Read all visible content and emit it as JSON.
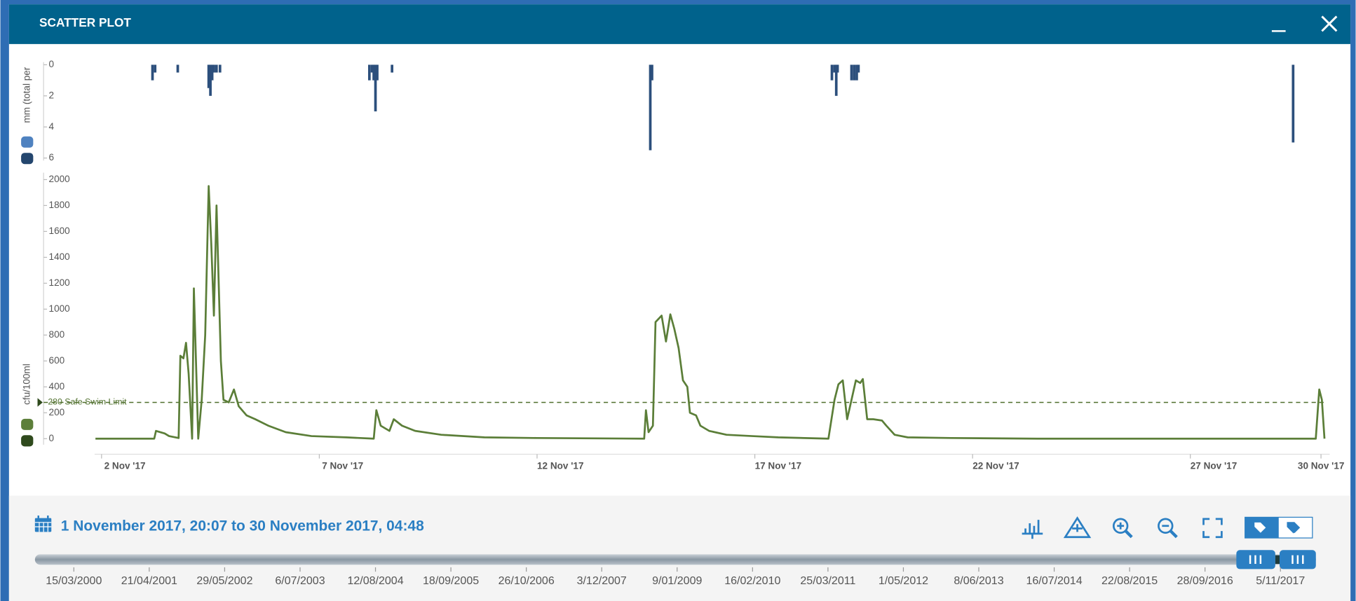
{
  "window": {
    "title": "SCATTER PLOT"
  },
  "chart_data": [
    {
      "type": "bar",
      "ylabel": "mm (total per",
      "x": [
        3.17,
        3.23,
        3.75,
        4.46,
        4.5,
        4.54,
        4.58,
        4.64,
        4.72,
        8.15,
        8.21,
        8.25,
        8.29,
        8.33,
        8.67,
        14.6,
        14.64,
        18.77,
        18.83,
        18.87,
        18.9,
        19.22,
        19.28,
        19.34,
        19.38,
        29.36
      ],
      "values": [
        1.0,
        0.5,
        0.5,
        1.5,
        2.0,
        1.0,
        0.5,
        0.5,
        0.5,
        1.0,
        0.5,
        1.0,
        3.0,
        1.0,
        0.5,
        5.5,
        1.0,
        1.0,
        0.5,
        2.0,
        0.5,
        1.0,
        1.0,
        1.0,
        0.5,
        5.0
      ],
      "color": "#2c4f7c",
      "legend_colors": [
        "#4f82c0",
        "#24466e"
      ],
      "xlim": [
        1.84,
        30.2
      ],
      "ylim": [
        0,
        6
      ],
      "yticks": [
        0,
        2,
        4,
        6
      ],
      "y_inverted": true
    },
    {
      "type": "line",
      "ylabel": "cfu/100ml",
      "x": [
        1.86,
        3.21,
        3.25,
        3.45,
        3.55,
        3.77,
        3.81,
        3.88,
        3.94,
        4.0,
        4.08,
        4.12,
        4.22,
        4.3,
        4.38,
        4.46,
        4.52,
        4.58,
        4.64,
        4.74,
        4.8,
        4.92,
        5.04,
        5.15,
        5.33,
        5.53,
        5.83,
        6.23,
        6.82,
        7.62,
        8.25,
        8.31,
        8.41,
        8.61,
        8.71,
        8.9,
        9.2,
        9.8,
        10.79,
        11.98,
        14.46,
        14.5,
        14.56,
        14.66,
        14.72,
        14.86,
        14.96,
        15.06,
        15.15,
        15.25,
        15.35,
        15.45,
        15.51,
        15.65,
        15.75,
        15.95,
        16.35,
        16.94,
        17.54,
        18.69,
        18.83,
        18.92,
        19.02,
        19.12,
        19.22,
        19.32,
        19.42,
        19.48,
        19.58,
        19.72,
        19.92,
        20.02,
        20.21,
        20.51,
        21.5,
        23.49,
        29.88,
        29.96,
        30.02,
        30.08
      ],
      "values": [
        0,
        0,
        60,
        40,
        20,
        5,
        640,
        620,
        740,
        500,
        0,
        1160,
        0,
        300,
        800,
        1950,
        1500,
        950,
        1800,
        600,
        300,
        280,
        380,
        250,
        180,
        150,
        100,
        50,
        20,
        10,
        0,
        220,
        100,
        60,
        150,
        100,
        60,
        30,
        10,
        5,
        0,
        220,
        50,
        100,
        900,
        950,
        750,
        960,
        850,
        700,
        450,
        400,
        200,
        180,
        100,
        60,
        30,
        20,
        10,
        0,
        300,
        420,
        450,
        150,
        300,
        450,
        430,
        460,
        150,
        150,
        140,
        100,
        30,
        10,
        5,
        0,
        0,
        380,
        300,
        0
      ],
      "color": "#5b7e38",
      "legend_colors": [
        "#5d7f3a",
        "#2f4a1d"
      ],
      "threshold": {
        "value": 280,
        "label": "280 Safe Swim Limit"
      },
      "xlim": [
        1.84,
        30.2
      ],
      "ylim": [
        0,
        2000
      ],
      "yticks": [
        0,
        200,
        400,
        600,
        800,
        1000,
        1200,
        1400,
        1600,
        1800,
        2000
      ],
      "xticks": [
        {
          "value": 2,
          "label": "2 Nov '17"
        },
        {
          "value": 7,
          "label": "7 Nov '17"
        },
        {
          "value": 12,
          "label": "12 Nov '17"
        },
        {
          "value": 17,
          "label": "17 Nov '17"
        },
        {
          "value": 22,
          "label": "22 Nov '17"
        },
        {
          "value": 27,
          "label": "27 Nov '17"
        },
        {
          "value": 30,
          "label": "30 Nov '17"
        }
      ]
    }
  ],
  "range_label": "1 November 2017, 20:07 to 30 November 2017, 04:48",
  "timeline": {
    "labels": [
      "15/03/2000",
      "21/04/2001",
      "29/05/2002",
      "6/07/2003",
      "12/08/2004",
      "18/09/2005",
      "26/10/2006",
      "3/12/2007",
      "9/01/2009",
      "16/02/2010",
      "25/03/2011",
      "1/05/2012",
      "8/06/2013",
      "16/07/2014",
      "22/08/2015",
      "28/09/2016",
      "5/11/2017"
    ]
  }
}
